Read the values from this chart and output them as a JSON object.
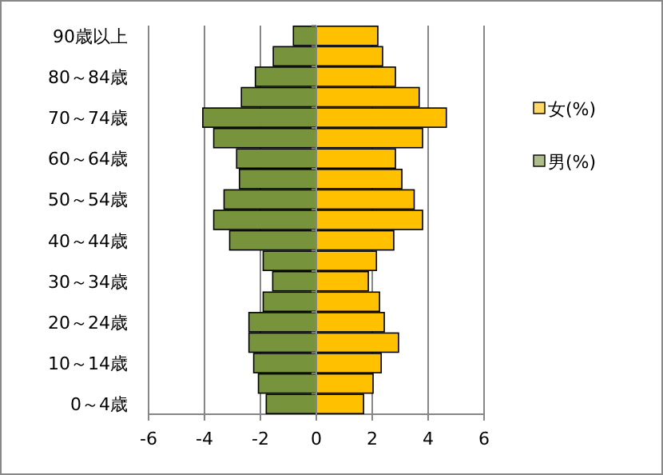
{
  "chart_data": {
    "type": "bar",
    "orientation": "horizontal",
    "stacked": true,
    "categories": [
      "90歳以上",
      null,
      "80～84歳",
      null,
      "70～74歳",
      null,
      "60～64歳",
      null,
      "50～54歳",
      null,
      "40～44歳",
      null,
      "30～34歳",
      null,
      "20～24歳",
      null,
      "10～14歳",
      null,
      "0～4歳"
    ],
    "series": [
      {
        "name": "女(%)",
        "color": "#ffc000",
        "values": [
          2.2,
          2.37,
          2.83,
          3.68,
          4.65,
          3.8,
          2.83,
          3.06,
          3.5,
          3.8,
          2.77,
          2.15,
          1.86,
          2.26,
          2.43,
          2.94,
          2.32,
          2.03,
          1.69
        ]
      },
      {
        "name": "男(%)",
        "color": "#77933c",
        "values": [
          -0.82,
          -1.54,
          -2.18,
          -2.68,
          -4.06,
          -3.67,
          -2.85,
          -2.75,
          -3.3,
          -3.67,
          -3.1,
          -1.9,
          -1.56,
          -1.9,
          -2.41,
          -2.41,
          -2.24,
          -2.07,
          -1.79
        ]
      }
    ],
    "xlim": [
      -6,
      6
    ],
    "xticks": [
      -6,
      -4,
      -2,
      0,
      2,
      4,
      6
    ],
    "grid": "x",
    "legend": "right"
  }
}
